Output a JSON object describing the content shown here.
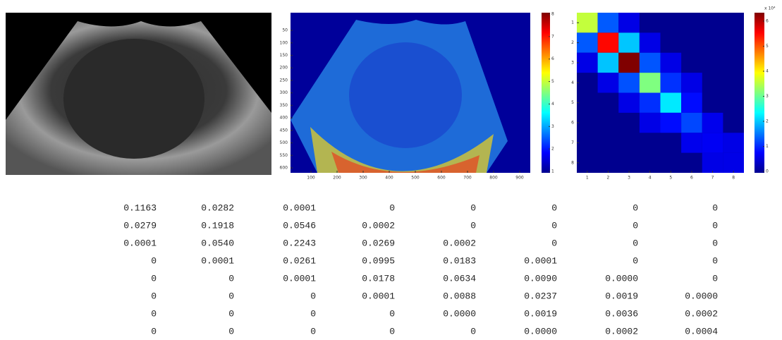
{
  "panels": {
    "intensity_map": {
      "xticks": [
        100,
        200,
        300,
        400,
        500,
        600,
        700,
        800,
        900
      ],
      "yticks": [
        50,
        100,
        150,
        200,
        250,
        300,
        350,
        400,
        450,
        500,
        550,
        600
      ],
      "colorbar_ticks": [
        1,
        2,
        3,
        4,
        5,
        6,
        7,
        8
      ]
    },
    "glcm_map": {
      "xticks": [
        1,
        2,
        3,
        4,
        5,
        6,
        7,
        8
      ],
      "yticks": [
        1,
        2,
        3,
        4,
        5,
        6,
        7,
        8
      ],
      "colorbar_ticks": [
        0,
        1,
        2,
        3,
        4,
        5,
        6
      ],
      "colorbar_scale": "x 10⁴"
    }
  },
  "table": {
    "rows": [
      [
        "0.1163",
        "0.0282",
        "0.0001",
        "0",
        "0",
        "0",
        "0",
        "0"
      ],
      [
        "0.0279",
        "0.1918",
        "0.0546",
        "0.0002",
        "0",
        "0",
        "0",
        "0"
      ],
      [
        "0.0001",
        "0.0540",
        "0.2243",
        "0.0269",
        "0.0002",
        "0",
        "0",
        "0"
      ],
      [
        "0",
        "0.0001",
        "0.0261",
        "0.0995",
        "0.0183",
        "0.0001",
        "0",
        "0"
      ],
      [
        "0",
        "0",
        "0.0001",
        "0.0178",
        "0.0634",
        "0.0090",
        "0.0000",
        "0"
      ],
      [
        "0",
        "0",
        "0",
        "0.0001",
        "0.0088",
        "0.0237",
        "0.0019",
        "0.0000"
      ],
      [
        "0",
        "0",
        "0",
        "0",
        "0.0000",
        "0.0019",
        "0.0036",
        "0.0002"
      ],
      [
        "0",
        "0",
        "0",
        "0",
        "0",
        "0.0000",
        "0.0002",
        "0.0004"
      ]
    ]
  }
}
